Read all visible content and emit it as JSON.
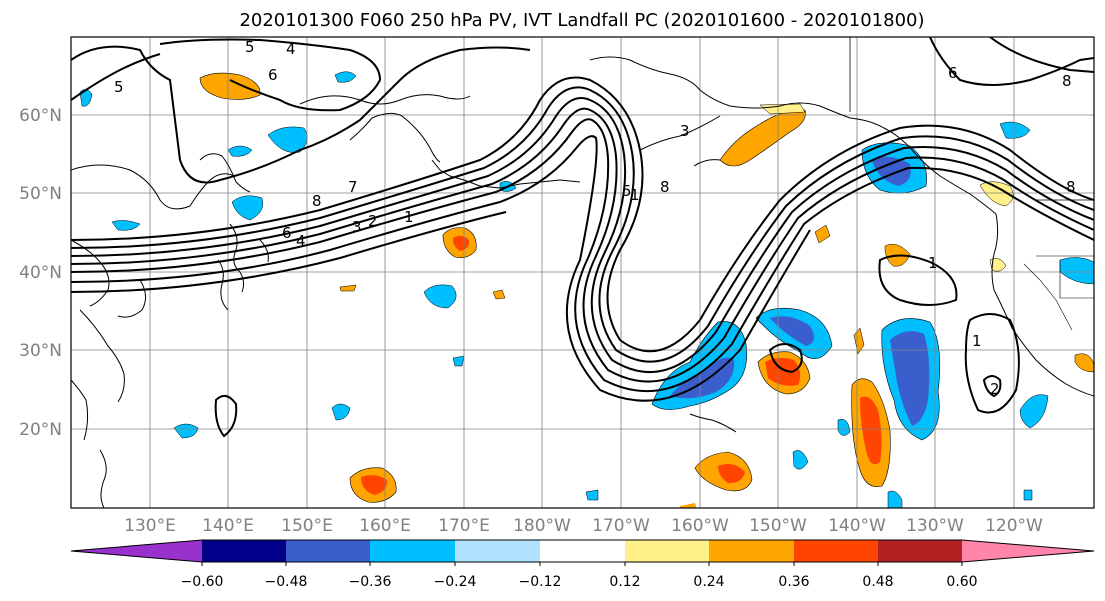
{
  "title": "2020101300 F060 250 hPa PV, IVT Landfall PC (2020101600 - 2020101800)",
  "map": {
    "lon_ticks": [
      "130°E",
      "140°E",
      "150°E",
      "160°E",
      "170°E",
      "180°W",
      "170°W",
      "160°W",
      "150°W",
      "140°W",
      "130°W",
      "120°W"
    ],
    "lat_ticks": [
      "60°N",
      "50°N",
      "40°N",
      "30°N",
      "20°N"
    ],
    "gridlines": true,
    "coastline_color": "#000000",
    "gridline_color": "#808080"
  },
  "colorbar": {
    "colors": [
      "#9932cc",
      "#00008b",
      "#3a5fcd",
      "#00bfff",
      "#b0e2ff",
      "#ffffff",
      "#fff08a",
      "#ffa500",
      "#ff4500",
      "#b22222",
      "#ff85aa"
    ],
    "tick_labels": [
      "−0.60",
      "−0.48",
      "−0.36",
      "−0.24",
      "−0.12",
      "0.12",
      "0.24",
      "0.36",
      "0.48",
      "0.60"
    ],
    "extend": "both"
  },
  "contour_labels": {
    "north_pacific": [
      "5",
      "4",
      "6",
      "5",
      "8",
      "7",
      "6",
      "4",
      "3",
      "2",
      "1",
      "1",
      "8",
      "5",
      "3"
    ],
    "east_pacific": [
      "6",
      "8",
      "8",
      "1",
      "1",
      "2"
    ]
  }
}
